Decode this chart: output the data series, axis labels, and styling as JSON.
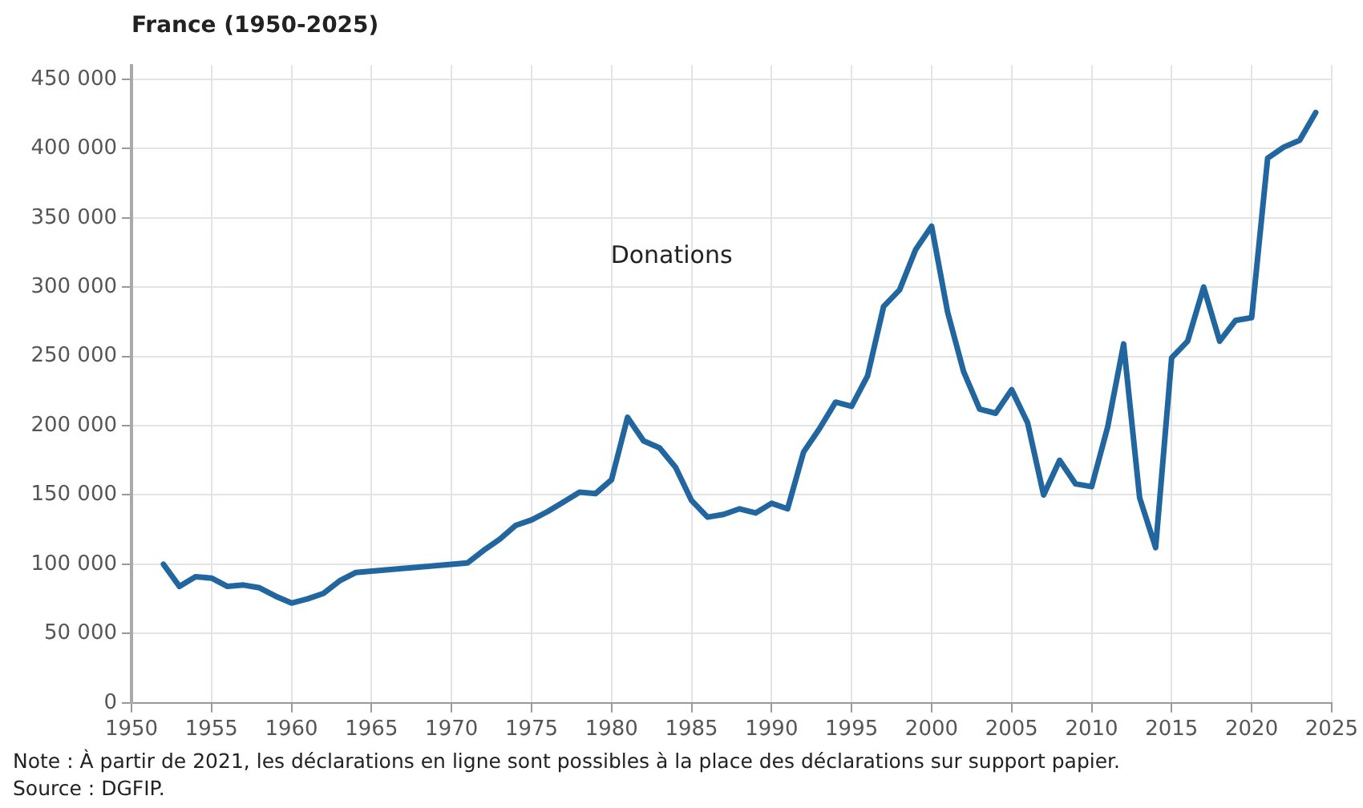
{
  "chart_data": {
    "type": "line",
    "title": "France (1950-2025)",
    "x": [
      1952,
      1953,
      1954,
      1955,
      1956,
      1957,
      1958,
      1959,
      1960,
      1961,
      1962,
      1963,
      1964,
      1971,
      1972,
      1973,
      1974,
      1975,
      1976,
      1977,
      1978,
      1979,
      1980,
      1981,
      1982,
      1983,
      1984,
      1985,
      1986,
      1987,
      1988,
      1989,
      1990,
      1991,
      1992,
      1993,
      1994,
      1995,
      1996,
      1997,
      1998,
      1999,
      2000,
      2001,
      2002,
      2003,
      2004,
      2005,
      2006,
      2007,
      2008,
      2009,
      2010,
      2011,
      2012,
      2013,
      2014,
      2015,
      2016,
      2017,
      2018,
      2019,
      2020,
      2021,
      2022,
      2023,
      2024
    ],
    "series": [
      {
        "name": "Donations",
        "color": "#2266a0",
        "values": [
          100000,
          84000,
          91000,
          90000,
          84000,
          85000,
          83000,
          77000,
          72000,
          75000,
          79000,
          88000,
          94000,
          101000,
          110000,
          118000,
          128000,
          132000,
          138000,
          145000,
          152000,
          151000,
          161000,
          206000,
          189000,
          184000,
          170000,
          146000,
          134000,
          136000,
          140000,
          137000,
          144000,
          140000,
          181000,
          198000,
          217000,
          214000,
          236000,
          286000,
          298000,
          327000,
          344000,
          282000,
          239000,
          212000,
          209000,
          226000,
          202000,
          150000,
          175000,
          158000,
          156000,
          199000,
          259000,
          148000,
          112000,
          249000,
          261000,
          300000,
          261000,
          276000,
          278000,
          393000,
          401000,
          406000,
          426000
        ]
      }
    ],
    "xlim": [
      1950,
      2025
    ],
    "xticks": [
      1950,
      1955,
      1960,
      1965,
      1970,
      1975,
      1980,
      1985,
      1990,
      1995,
      2000,
      2005,
      2010,
      2015,
      2020,
      2025
    ],
    "ylim": [
      0,
      460000
    ],
    "yticks": [
      0,
      {
        "value": 50000,
        "label": "50 000"
      },
      {
        "value": 100000,
        "label": "100 000"
      },
      {
        "value": 150000,
        "label": "150 000"
      },
      {
        "value": 200000,
        "label": "200 000"
      },
      {
        "value": 250000,
        "label": "250 000"
      },
      {
        "value": 300000,
        "label": "300 000"
      },
      {
        "value": 350000,
        "label": "350 000"
      },
      {
        "value": 400000,
        "label": "400 000"
      },
      {
        "value": 450000,
        "label": "450 000"
      }
    ],
    "grid": true,
    "legend": false,
    "marker": "none",
    "line_style": "solid",
    "annotations": [
      "Note : À partir de 2021, les déclarations en ligne sont possibles à la place des déclarations sur support papier.",
      "Source : DGFIP."
    ]
  }
}
